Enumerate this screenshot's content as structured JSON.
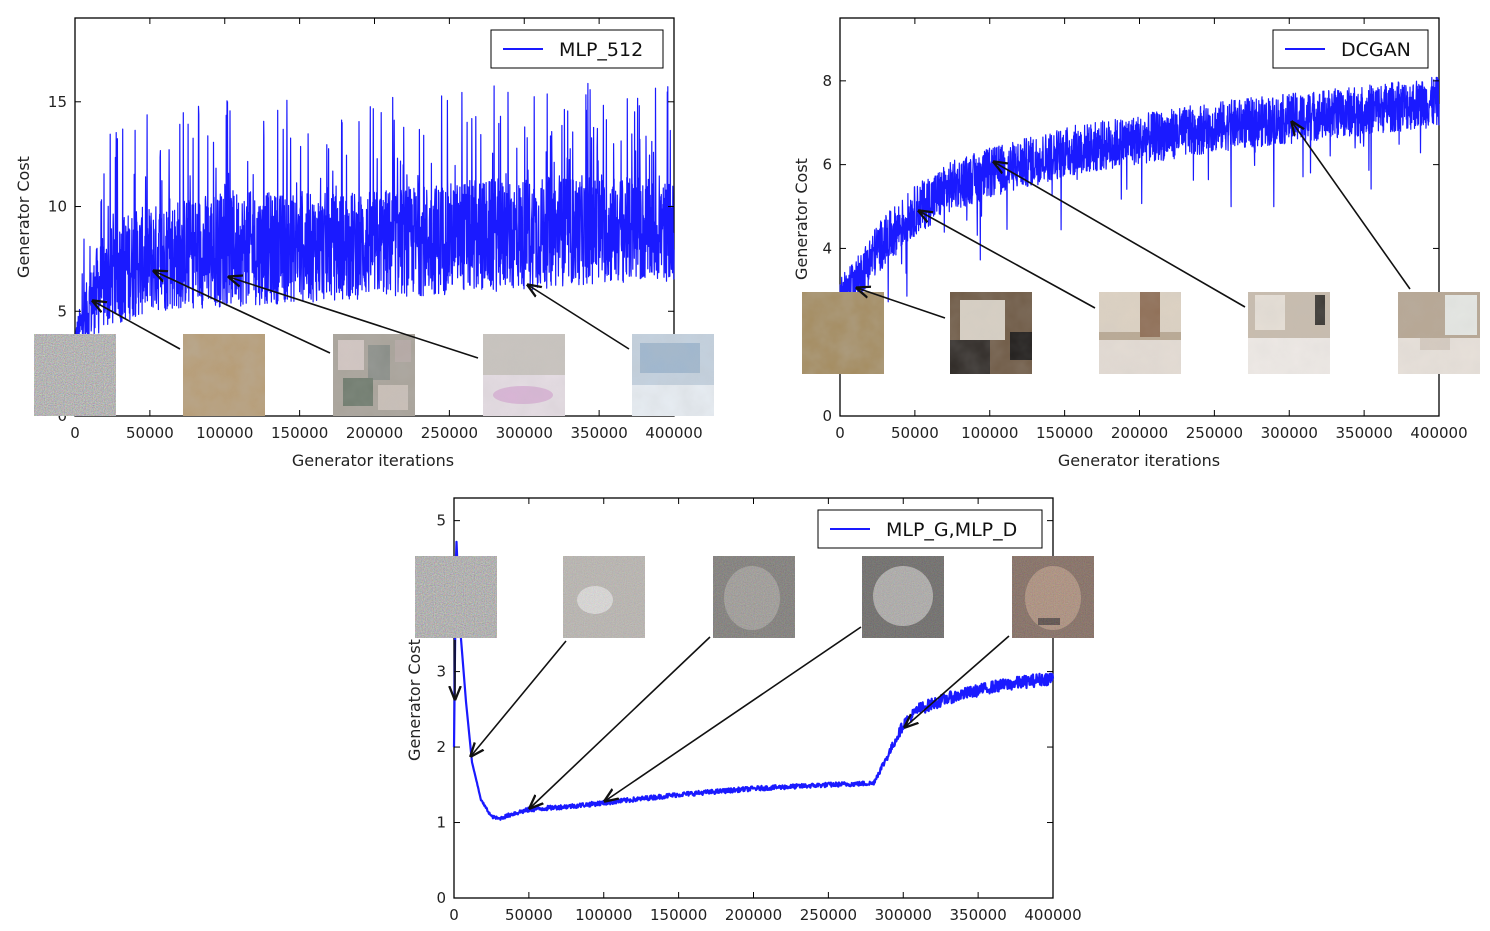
{
  "chart_data": [
    {
      "type": "line",
      "title": "",
      "xlabel": "Generator iterations",
      "ylabel": "Generator Cost",
      "xlim": [
        0,
        400000
      ],
      "ylim": [
        0,
        19
      ],
      "xticks": [
        0,
        50000,
        100000,
        150000,
        200000,
        250000,
        300000,
        350000,
        400000
      ],
      "xtick_labels": [
        "0",
        "50000",
        "100000",
        "150000",
        "200000",
        "250000",
        "300000",
        "350000",
        "400000"
      ],
      "yticks": [
        0,
        5,
        10,
        15
      ],
      "ytick_labels": [
        "0",
        "5",
        "10",
        "15"
      ],
      "legend": {
        "position": "top-right",
        "entries": [
          "MLP_512"
        ]
      },
      "series": [
        {
          "name": "MLP_512",
          "color": "#1a1aff",
          "x": [
            0,
            5000,
            15000,
            30000,
            50000,
            75000,
            100000,
            150000,
            200000,
            250000,
            300000,
            350000,
            400000
          ],
          "y": [
            3.5,
            4.5,
            6.0,
            7.0,
            7.5,
            7.8,
            8.0,
            8.0,
            8.2,
            8.5,
            8.7,
            8.9,
            8.8
          ],
          "spread": [
            0.8,
            1.2,
            2.2,
            2.6,
            2.6,
            2.7,
            2.8,
            2.6,
            2.6,
            2.7,
            2.7,
            2.6,
            2.4
          ],
          "peak": [
            15.2,
            14.7,
            14.5,
            13.5
          ]
        }
      ],
      "annotations": [
        {
          "x": 10000,
          "y": 5.5,
          "sample": "noise"
        },
        {
          "x": 50000,
          "y": 7.0,
          "sample": "beige"
        },
        {
          "x": 100000,
          "y": 6.7,
          "sample": "patchy"
        },
        {
          "x": 200000,
          "y": 6.5,
          "sample": "pinkwhite"
        },
        {
          "x": 300000,
          "y": 6.4,
          "sample": "bluewhite"
        }
      ]
    },
    {
      "type": "line",
      "title": "",
      "xlabel": "Generator iterations",
      "ylabel": "Generator Cost",
      "xlim": [
        0,
        400000
      ],
      "ylim": [
        0,
        9.5
      ],
      "xticks": [
        0,
        50000,
        100000,
        150000,
        200000,
        250000,
        300000,
        350000,
        400000
      ],
      "xtick_labels": [
        "0",
        "50000",
        "100000",
        "150000",
        "200000",
        "250000",
        "300000",
        "350000",
        "400000"
      ],
      "yticks": [
        0,
        2,
        4,
        6,
        8
      ],
      "ytick_labels": [
        "0",
        "2",
        "4",
        "6",
        "8"
      ],
      "legend": {
        "position": "top-right",
        "entries": [
          "DCGAN"
        ]
      },
      "series": [
        {
          "name": "DCGAN",
          "color": "#1a1aff",
          "x": [
            0,
            10000,
            25000,
            50000,
            75000,
            100000,
            150000,
            200000,
            250000,
            300000,
            350000,
            400000
          ],
          "y": [
            3.0,
            3.2,
            4.0,
            4.9,
            5.5,
            5.8,
            6.3,
            6.6,
            6.9,
            7.1,
            7.3,
            7.5
          ],
          "spread": [
            0.3,
            0.5,
            0.6,
            0.6,
            0.6,
            0.6,
            0.6,
            0.6,
            0.6,
            0.6,
            0.6,
            0.6
          ]
        }
      ],
      "annotations": [
        {
          "x": 10000,
          "y": 3.0,
          "sample": "beige"
        },
        {
          "x": 50000,
          "y": 4.9,
          "sample": "brown"
        },
        {
          "x": 100000,
          "y": 6.0,
          "sample": "bedroom1"
        },
        {
          "x": 300000,
          "y": 7.1,
          "sample": "bedroom2"
        },
        {
          "x": 300000,
          "y": 7.1,
          "sample": "bedroom3"
        }
      ]
    },
    {
      "type": "line",
      "title": "",
      "xlabel": "",
      "ylabel": "Generator Cost",
      "xlim": [
        0,
        400000
      ],
      "ylim": [
        0,
        5.3
      ],
      "xticks": [
        0,
        50000,
        100000,
        150000,
        200000,
        250000,
        300000,
        350000,
        400000
      ],
      "xtick_labels": [
        "0",
        "50000",
        "100000",
        "150000",
        "200000",
        "250000",
        "300000",
        "350000",
        "400000"
      ],
      "yticks": [
        0,
        1,
        2,
        3,
        4,
        5
      ],
      "ytick_labels": [
        "0",
        "1",
        "2",
        "3",
        "4",
        "5"
      ],
      "legend": {
        "position": "top-right",
        "entries": [
          "MLP_G,MLP_D"
        ]
      },
      "series": [
        {
          "name": "MLP_G,MLP_D",
          "color": "#1a1aff",
          "x": [
            0,
            1500,
            4000,
            8000,
            12000,
            18000,
            25000,
            30000,
            40000,
            50000,
            80000,
            100000,
            150000,
            200000,
            250000,
            280000,
            290000,
            300000,
            310000,
            330000,
            360000,
            400000
          ],
          "y": [
            2.0,
            4.8,
            3.6,
            2.6,
            1.8,
            1.3,
            1.08,
            1.05,
            1.12,
            1.17,
            1.22,
            1.26,
            1.37,
            1.45,
            1.5,
            1.52,
            1.9,
            2.3,
            2.5,
            2.65,
            2.8,
            2.92
          ],
          "spread": [
            0.0,
            0.0,
            0.0,
            0.0,
            0.0,
            0.01,
            0.02,
            0.02,
            0.03,
            0.03,
            0.03,
            0.03,
            0.03,
            0.03,
            0.03,
            0.03,
            0.05,
            0.07,
            0.08,
            0.08,
            0.08,
            0.09
          ]
        }
      ],
      "annotations": [
        {
          "x": 0,
          "y": 2.6,
          "sample": "noise"
        },
        {
          "x": 10000,
          "y": 1.9,
          "sample": "blur"
        },
        {
          "x": 50000,
          "y": 1.18,
          "sample": "face1"
        },
        {
          "x": 100000,
          "y": 1.3,
          "sample": "face2"
        },
        {
          "x": 300000,
          "y": 2.3,
          "sample": "face3"
        }
      ]
    }
  ]
}
